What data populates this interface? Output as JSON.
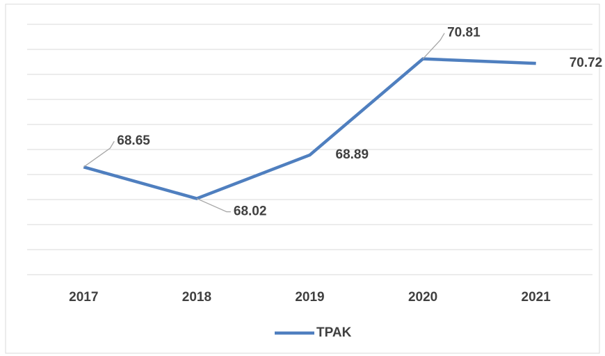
{
  "chart_data": {
    "type": "line",
    "categories": [
      "2017",
      "2018",
      "2019",
      "2020",
      "2021"
    ],
    "series": [
      {
        "name": "TPAK",
        "color": "#4f7fbf",
        "values": [
          68.65,
          68.02,
          68.89,
          70.81,
          70.72
        ]
      }
    ],
    "ylim": [
      66.5,
      71.5
    ],
    "yticks": [
      66.5,
      67,
      67.5,
      68,
      68.5,
      69,
      69.5,
      70,
      70.5,
      71,
      71.5
    ],
    "grid": true,
    "legend": "bottom"
  }
}
